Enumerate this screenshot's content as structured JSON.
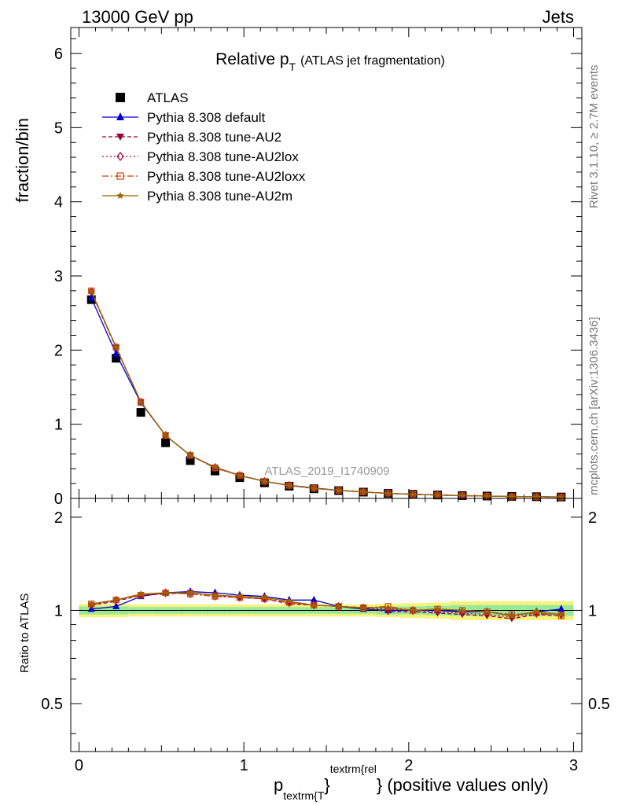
{
  "header": {
    "left": "13000 GeV pp",
    "right": "Jets"
  },
  "side_labels": {
    "rivet": "Rivet 3.1.10, ≥ 2.7M events",
    "mcplots": "mcplots.cern.ch [arXiv:1306.3436]"
  },
  "watermark": "ATLAS_2019_I1740909",
  "chart_data": {
    "type": "line",
    "title": {
      "main": "Relative p",
      "sub": "T",
      "suffix": "(ATLAS jet fragmentation)"
    },
    "ylabel": "fraction/bin",
    "ratio_ylabel": "Ratio to ATLAS",
    "xlabel": {
      "p": "p",
      "sub": "textrm{T",
      "brace": "}",
      "sup": "textrm{rel",
      "tail": "} (positive values only)"
    },
    "xlim": [
      -0.05,
      3.05
    ],
    "ylim": [
      0,
      6.35
    ],
    "ratio_ylim": [
      0.35,
      2.3
    ],
    "xticks": [
      0,
      1,
      2,
      3
    ],
    "xtick_labels": [
      "0",
      "1",
      "2",
      "3"
    ],
    "yticks": [
      0,
      1,
      2,
      3,
      4,
      5,
      6
    ],
    "ytick_labels": [
      "0",
      "1",
      "2",
      "3",
      "4",
      "5",
      "6"
    ],
    "ratio_yticks": [
      0.5,
      1,
      2
    ],
    "ratio_ytick_labels": [
      "0.5",
      "1",
      "2"
    ],
    "legend_position": "top-left",
    "x": [
      0.075,
      0.225,
      0.375,
      0.525,
      0.675,
      0.825,
      0.975,
      1.125,
      1.275,
      1.425,
      1.575,
      1.725,
      1.875,
      2.025,
      2.175,
      2.325,
      2.475,
      2.625,
      2.775,
      2.925
    ],
    "data": {
      "name": "ATLAS",
      "values": [
        2.68,
        1.89,
        1.16,
        0.75,
        0.51,
        0.37,
        0.28,
        0.21,
        0.165,
        0.13,
        0.105,
        0.085,
        0.068,
        0.055,
        0.046,
        0.038,
        0.032,
        0.027,
        0.023,
        0.019
      ]
    },
    "band_inner": [
      0.03,
      0.03,
      0.025,
      0.025,
      0.025,
      0.025,
      0.025,
      0.025,
      0.025,
      0.025,
      0.025,
      0.025,
      0.03,
      0.03,
      0.035,
      0.04,
      0.04,
      0.04,
      0.04,
      0.04
    ],
    "band_outer": [
      0.05,
      0.05,
      0.045,
      0.045,
      0.045,
      0.045,
      0.045,
      0.045,
      0.045,
      0.045,
      0.045,
      0.045,
      0.05,
      0.055,
      0.06,
      0.07,
      0.07,
      0.07,
      0.07,
      0.07
    ],
    "series": [
      {
        "name": "Pythia 8.308 default",
        "color": "#0000cc",
        "dash": "",
        "marker": "triangle-up",
        "values": [
          2.7,
          1.95,
          1.29,
          0.85,
          0.58,
          0.42,
          0.31,
          0.23,
          0.178,
          0.141,
          0.108,
          0.086,
          0.068,
          0.055,
          0.046,
          0.038,
          0.032,
          0.026,
          0.023,
          0.019
        ],
        "ratio": [
          1.01,
          1.03,
          1.11,
          1.14,
          1.15,
          1.14,
          1.12,
          1.11,
          1.08,
          1.08,
          1.03,
          1.01,
          1.0,
          1.0,
          1.0,
          0.99,
          0.99,
          0.96,
          0.99,
          1.01
        ]
      },
      {
        "name": "Pythia 8.308 tune-AU2",
        "color": "#990033",
        "dash": "5,3",
        "marker": "triangle-down",
        "values": [
          2.78,
          2.03,
          1.3,
          0.85,
          0.58,
          0.42,
          0.31,
          0.23,
          0.175,
          0.135,
          0.108,
          0.087,
          0.068,
          0.055,
          0.045,
          0.037,
          0.031,
          0.025,
          0.022,
          0.018
        ],
        "ratio": [
          1.04,
          1.07,
          1.12,
          1.13,
          1.14,
          1.12,
          1.1,
          1.09,
          1.05,
          1.04,
          1.03,
          1.02,
          0.99,
          0.99,
          0.98,
          0.97,
          0.96,
          0.94,
          0.97,
          0.96
        ]
      },
      {
        "name": "Pythia 8.308 tune-AU2lox",
        "color": "#aa0044",
        "dash": "2,3",
        "marker": "diamond-open",
        "values": [
          2.79,
          2.04,
          1.3,
          0.85,
          0.58,
          0.41,
          0.31,
          0.23,
          0.174,
          0.136,
          0.108,
          0.087,
          0.069,
          0.055,
          0.046,
          0.037,
          0.031,
          0.026,
          0.022,
          0.018
        ],
        "ratio": [
          1.04,
          1.08,
          1.12,
          1.14,
          1.13,
          1.11,
          1.1,
          1.09,
          1.06,
          1.04,
          1.03,
          1.02,
          1.01,
          1.0,
          0.99,
          0.98,
          0.97,
          0.95,
          0.98,
          0.97
        ]
      },
      {
        "name": "Pythia 8.308 tune-AU2loxx",
        "color": "#cc4400",
        "dash": "8,3,2,3",
        "marker": "square-open",
        "values": [
          2.8,
          2.04,
          1.3,
          0.85,
          0.58,
          0.41,
          0.31,
          0.23,
          0.175,
          0.136,
          0.109,
          0.087,
          0.07,
          0.055,
          0.046,
          0.038,
          0.032,
          0.026,
          0.023,
          0.018
        ],
        "ratio": [
          1.05,
          1.08,
          1.12,
          1.14,
          1.13,
          1.11,
          1.1,
          1.09,
          1.06,
          1.04,
          1.03,
          1.02,
          1.03,
          1.0,
          1.01,
          1.0,
          0.99,
          0.97,
          0.98,
          0.96
        ]
      },
      {
        "name": "Pythia 8.308 tune-AU2m",
        "color": "#996600",
        "dash": "",
        "marker": "star",
        "values": [
          2.79,
          2.04,
          1.3,
          0.85,
          0.58,
          0.42,
          0.31,
          0.23,
          0.176,
          0.136,
          0.108,
          0.087,
          0.069,
          0.055,
          0.046,
          0.038,
          0.032,
          0.026,
          0.023,
          0.019
        ],
        "ratio": [
          1.05,
          1.08,
          1.13,
          1.14,
          1.14,
          1.12,
          1.11,
          1.1,
          1.07,
          1.04,
          1.03,
          1.02,
          1.02,
          1.0,
          1.01,
          1.0,
          0.99,
          0.96,
          0.99,
          0.97
        ]
      }
    ]
  }
}
